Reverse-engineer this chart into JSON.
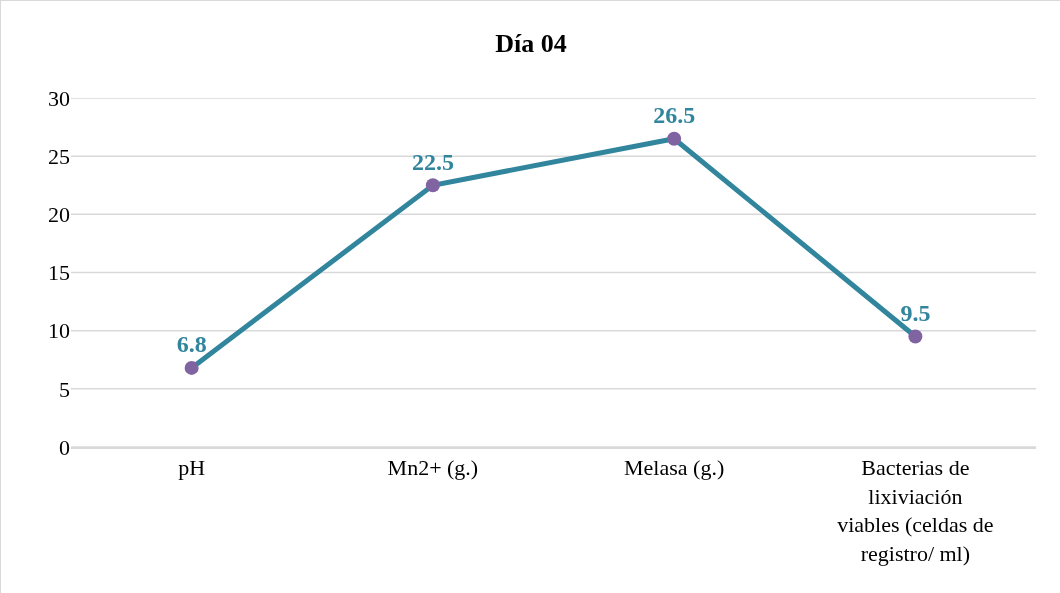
{
  "chart_data": {
    "type": "line",
    "title": "Día 04",
    "categories": [
      "pH",
      "Mn2+ (g.)",
      "Melasa (g.)",
      "Bacterias de lixiviación viables (celdas de registro/ ml)"
    ],
    "series": [
      {
        "color": "#31859c",
        "colors": [
          "#8064a2",
          "#8064a2",
          "#8064a2",
          "#8064a2"
        ],
        "values": [
          6.8,
          22.5,
          26.5,
          9.5
        ]
      }
    ],
    "ylim": [
      0,
      30
    ],
    "yticks": [
      0,
      5,
      10,
      15,
      20,
      25,
      30
    ],
    "grid": "y",
    "marker": "circle",
    "line_style": "solid",
    "data_labels": true
  }
}
